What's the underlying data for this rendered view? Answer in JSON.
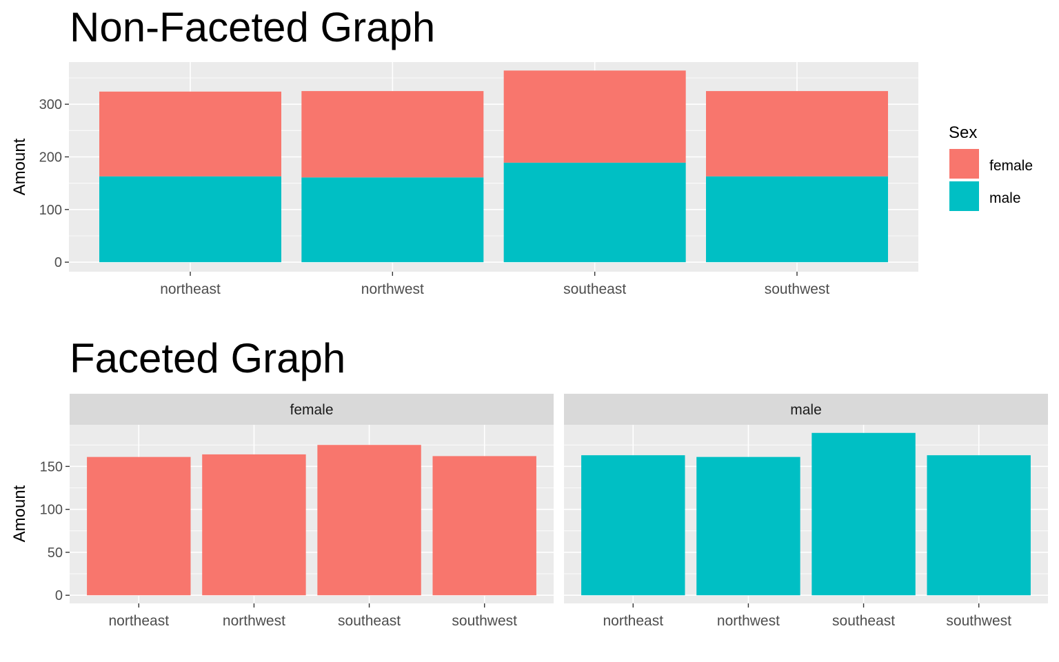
{
  "chart_data": [
    {
      "type": "bar",
      "stacked": true,
      "title": "Non-Faceted Graph",
      "xlabel": "",
      "ylabel": "Amount",
      "categories": [
        "northeast",
        "northwest",
        "southeast",
        "southwest"
      ],
      "series": [
        {
          "name": "female",
          "values": [
            161,
            164,
            175,
            162
          ]
        },
        {
          "name": "male",
          "values": [
            163,
            161,
            189,
            163
          ]
        }
      ],
      "ylim": [
        0,
        362
      ],
      "yticks": [
        0,
        100,
        200,
        300
      ],
      "grid": true,
      "legend": {
        "title": "Sex",
        "position": "right",
        "entries": [
          "female",
          "male"
        ]
      },
      "colors": {
        "female": "#F8766D",
        "male": "#00BFC4"
      }
    },
    {
      "type": "bar",
      "faceted": true,
      "title": "Faceted Graph",
      "xlabel": "",
      "ylabel": "Amount",
      "categories": [
        "northeast",
        "northwest",
        "southeast",
        "southwest"
      ],
      "facets": [
        {
          "label": "female",
          "color": "#F8766D",
          "values": [
            161,
            164,
            175,
            162
          ]
        },
        {
          "label": "male",
          "color": "#00BFC4",
          "values": [
            163,
            161,
            189,
            163
          ]
        }
      ],
      "ylim": [
        0,
        189
      ],
      "yticks": [
        0,
        50,
        100,
        150
      ],
      "grid": true
    }
  ]
}
